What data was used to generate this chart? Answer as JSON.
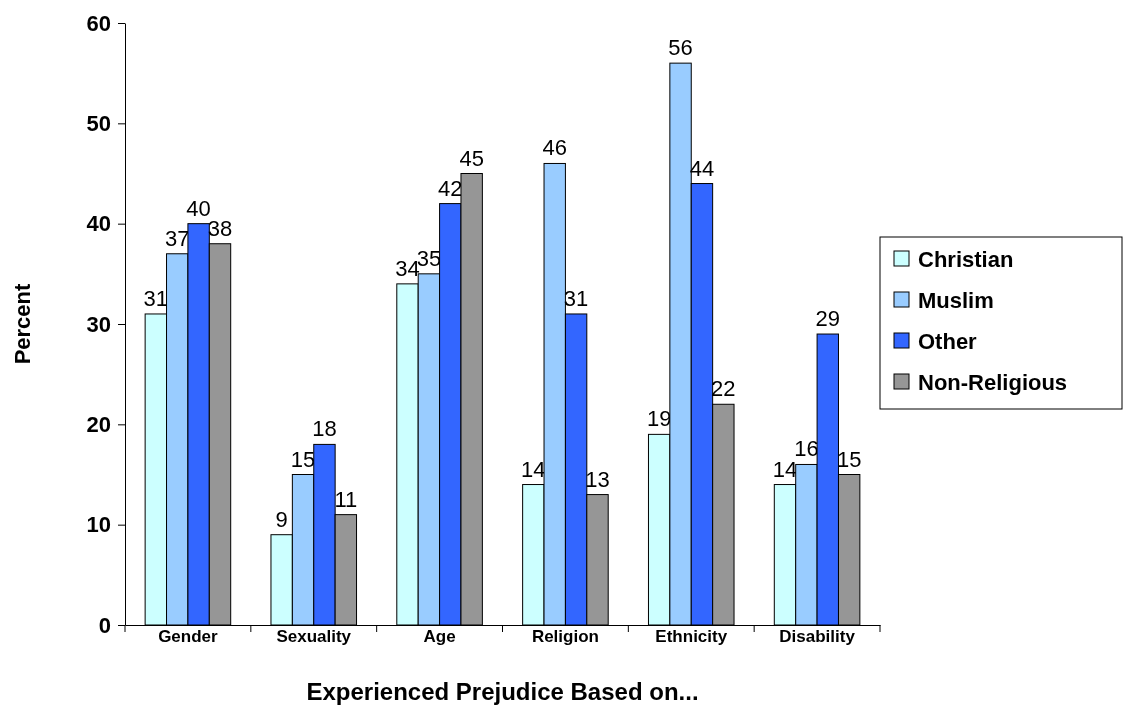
{
  "chart_data": {
    "type": "bar",
    "xlabel": "Experienced Prejudice Based on...",
    "ylabel": "Percent",
    "categories": [
      "Gender",
      "Sexuality",
      "Age",
      "Religion",
      "Ethnicity",
      "Disability"
    ],
    "series": [
      {
        "name": "Christian",
        "color": "#ccffff",
        "values": [
          31,
          9,
          34,
          14,
          19,
          14
        ]
      },
      {
        "name": "Muslim",
        "color": "#99ccff",
        "values": [
          37,
          15,
          35,
          46,
          56,
          16
        ]
      },
      {
        "name": "Other",
        "color": "#3366ff",
        "values": [
          40,
          18,
          42,
          31,
          44,
          29
        ]
      },
      {
        "name": "Non-Religious",
        "color": "#969696",
        "values": [
          38,
          11,
          45,
          13,
          22,
          15
        ]
      }
    ],
    "ylim": [
      0,
      60
    ],
    "yticks": [
      0,
      10,
      20,
      30,
      40,
      50,
      60
    ],
    "data_labels": true,
    "legend": "right",
    "grid": false
  }
}
